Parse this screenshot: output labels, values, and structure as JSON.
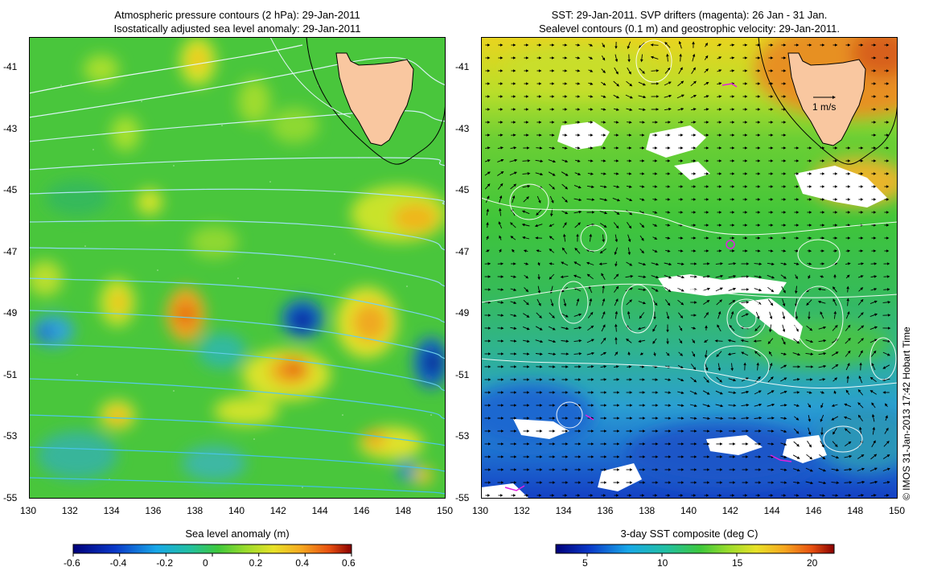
{
  "left_panel": {
    "title_line1": "Atmospheric pressure contours (2 hPa): 29-Jan-2011",
    "title_line2": "Isostatically adjusted sea level anomaly: 29-Jan-2011",
    "colorbar_label": "Sea level anomaly (m)",
    "colorbar_ticks": [
      "-0.6",
      "-0.4",
      "-0.2",
      "0",
      "0.2",
      "0.4",
      "0.6"
    ]
  },
  "right_panel": {
    "title_line1": "SST: 29-Jan-2011. SVP drifters (magenta): 26 Jan - 31 Jan.",
    "title_line2": "Sealevel contours (0.1 m) and geostrophic velocity: 29-Jan-2011.",
    "colorbar_label": "3-day SST composite (deg C)",
    "colorbar_ticks": [
      "5",
      "10",
      "15",
      "20"
    ],
    "scale_arrow_label": "1 m/s"
  },
  "axes": {
    "lon_ticks": [
      "130",
      "132",
      "134",
      "136",
      "138",
      "140",
      "142",
      "144",
      "146",
      "148",
      "150"
    ],
    "lat_ticks": [
      "-41",
      "-43",
      "-45",
      "-47",
      "-49",
      "-51",
      "-53",
      "-55"
    ],
    "lon_range": [
      130,
      150
    ],
    "lat_range": [
      -55,
      -40
    ]
  },
  "credit": "© IMOS 31-Jan-2013 17:42 Hobart Time",
  "colors": {
    "land": "#f9c7a0",
    "background_green": "#44c63a",
    "sla_high": "#ff8c00",
    "sla_low": "#0a1a9c",
    "drifter": "#e020e0"
  }
}
